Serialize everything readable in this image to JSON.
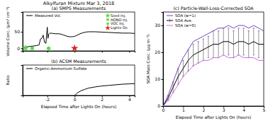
{
  "title": "Alkylfuran Mixture Mar 3, 2018",
  "chart_data": [
    {
      "type": "line",
      "title": "(a) SMPS Measurements",
      "ylabel": "Volume Conc. (μm³ cm⁻³)",
      "xlim": [
        -3.8,
        4.4
      ],
      "ylim": [
        -8,
        110
      ],
      "xticks": [
        -2,
        0,
        2,
        4
      ],
      "yticks": [
        0,
        50
      ],
      "tick_labels": "y",
      "legend": "upper left",
      "series": [
        {
          "name": "Measured Vol.",
          "type": "line",
          "color": "#000000",
          "x": [
            -3.8,
            -3.6,
            -3.4,
            -3.2,
            -3.0,
            -2.8,
            -2.6,
            -2.5,
            -2.4,
            -2.3,
            -2.2,
            -2.1,
            -2.0,
            -1.95,
            -1.9,
            -1.8,
            -1.6,
            -1.4,
            -1.2,
            -1.0,
            -0.8,
            -0.6,
            -0.4,
            -0.2,
            0,
            0.2,
            0.4,
            0.6,
            0.8,
            1.0,
            1.5,
            2.0,
            2.5,
            3.0,
            3.5,
            4.0,
            4.4
          ],
          "values": [
            3,
            4,
            5,
            6,
            7,
            8,
            10,
            28,
            30,
            40,
            18,
            15,
            64,
            30,
            42,
            46,
            45,
            44,
            44,
            43,
            40,
            37,
            35,
            35,
            36,
            40,
            44,
            47,
            49,
            50,
            50,
            49,
            48,
            47,
            46,
            46,
            45
          ]
        },
        {
          "name": "Seed Inj.",
          "type": "scatter",
          "marker": "star",
          "color": "#55dd44",
          "x": [
            -3.6
          ],
          "values": [
            0
          ]
        },
        {
          "name": "HONO Inj.",
          "type": "scatter",
          "marker": "square",
          "color": "#55dd44",
          "x": [
            -3.1
          ],
          "values": [
            0
          ]
        },
        {
          "name": "VOC Inj.",
          "type": "scatter",
          "marker": "circle",
          "color": "#55dd44",
          "x": [
            -1.9
          ],
          "values": [
            0
          ]
        },
        {
          "name": "Lights On",
          "type": "scatter",
          "marker": "star",
          "color": "#e02020",
          "x": [
            0
          ],
          "values": [
            0
          ]
        }
      ]
    },
    {
      "type": "line",
      "title": "(b) ACSM Measurements",
      "xlabel": "Elapsed Time after Lights On (hours)",
      "ylabel": "Ratio",
      "xlim": [
        -3.8,
        4.4
      ],
      "ylim": [
        0,
        1
      ],
      "xticks": [
        -2,
        0,
        2,
        4
      ],
      "yticks": [],
      "tick_labels": "x",
      "legend": "upper left",
      "series": [
        {
          "name": "Organic:Ammonium Sulfate",
          "color": "#000000",
          "x": [
            0,
            0.25,
            0.5,
            0.75,
            1,
            1.5,
            2,
            2.5,
            3,
            3.5,
            4,
            4.4
          ],
          "values": [
            0,
            0.1,
            0.16,
            0.2,
            0.24,
            0.28,
            0.31,
            0.33,
            0.35,
            0.37,
            0.38,
            0.39
          ]
        }
      ]
    },
    {
      "type": "line",
      "title": "(c) Particle-Wall-Loss-Corrected SOA",
      "xlabel": "Elapsed Time after Lights On (hours)",
      "ylabel": "SOA Mass Conc. (μg m⁻³)",
      "xlim": [
        0,
        5
      ],
      "ylim": [
        0,
        35
      ],
      "xticks": [
        0,
        1,
        2,
        3,
        4,
        5
      ],
      "yticks": [
        0,
        10,
        20,
        30
      ],
      "legend": "upper left",
      "x": [
        0,
        0.25,
        0.5,
        0.75,
        1,
        1.25,
        1.5,
        1.75,
        2,
        2.25,
        2.5,
        2.75,
        3,
        3.25,
        3.5,
        3.75,
        4,
        4.25,
        4.5,
        4.75,
        5
      ],
      "series": [
        {
          "name": "SOA (w=1)",
          "color": "#7a3ec8",
          "values": [
            0,
            4,
            9,
            14,
            18,
            21,
            24,
            25,
            26,
            27,
            28,
            29,
            29,
            30,
            29,
            30,
            30,
            29,
            30,
            29,
            28
          ]
        },
        {
          "name": "SOA Ave.",
          "color": "#000000",
          "values": [
            0,
            3,
            7,
            11,
            14,
            17,
            19,
            20,
            21,
            22,
            23,
            23,
            24,
            24,
            23,
            24,
            24,
            23,
            24,
            23,
            23
          ],
          "errors": [
            0,
            1,
            2,
            3,
            3,
            4,
            4,
            4,
            4,
            4,
            5,
            5,
            5,
            5,
            5,
            5,
            5,
            5,
            5,
            5,
            5
          ]
        },
        {
          "name": "SOA (w=0)",
          "color": "#c86fe0",
          "values": [
            0,
            2,
            5,
            8,
            11,
            13,
            15,
            16,
            17,
            17,
            18,
            18,
            19,
            18,
            18,
            19,
            18,
            18,
            18,
            17,
            17
          ]
        }
      ]
    }
  ]
}
